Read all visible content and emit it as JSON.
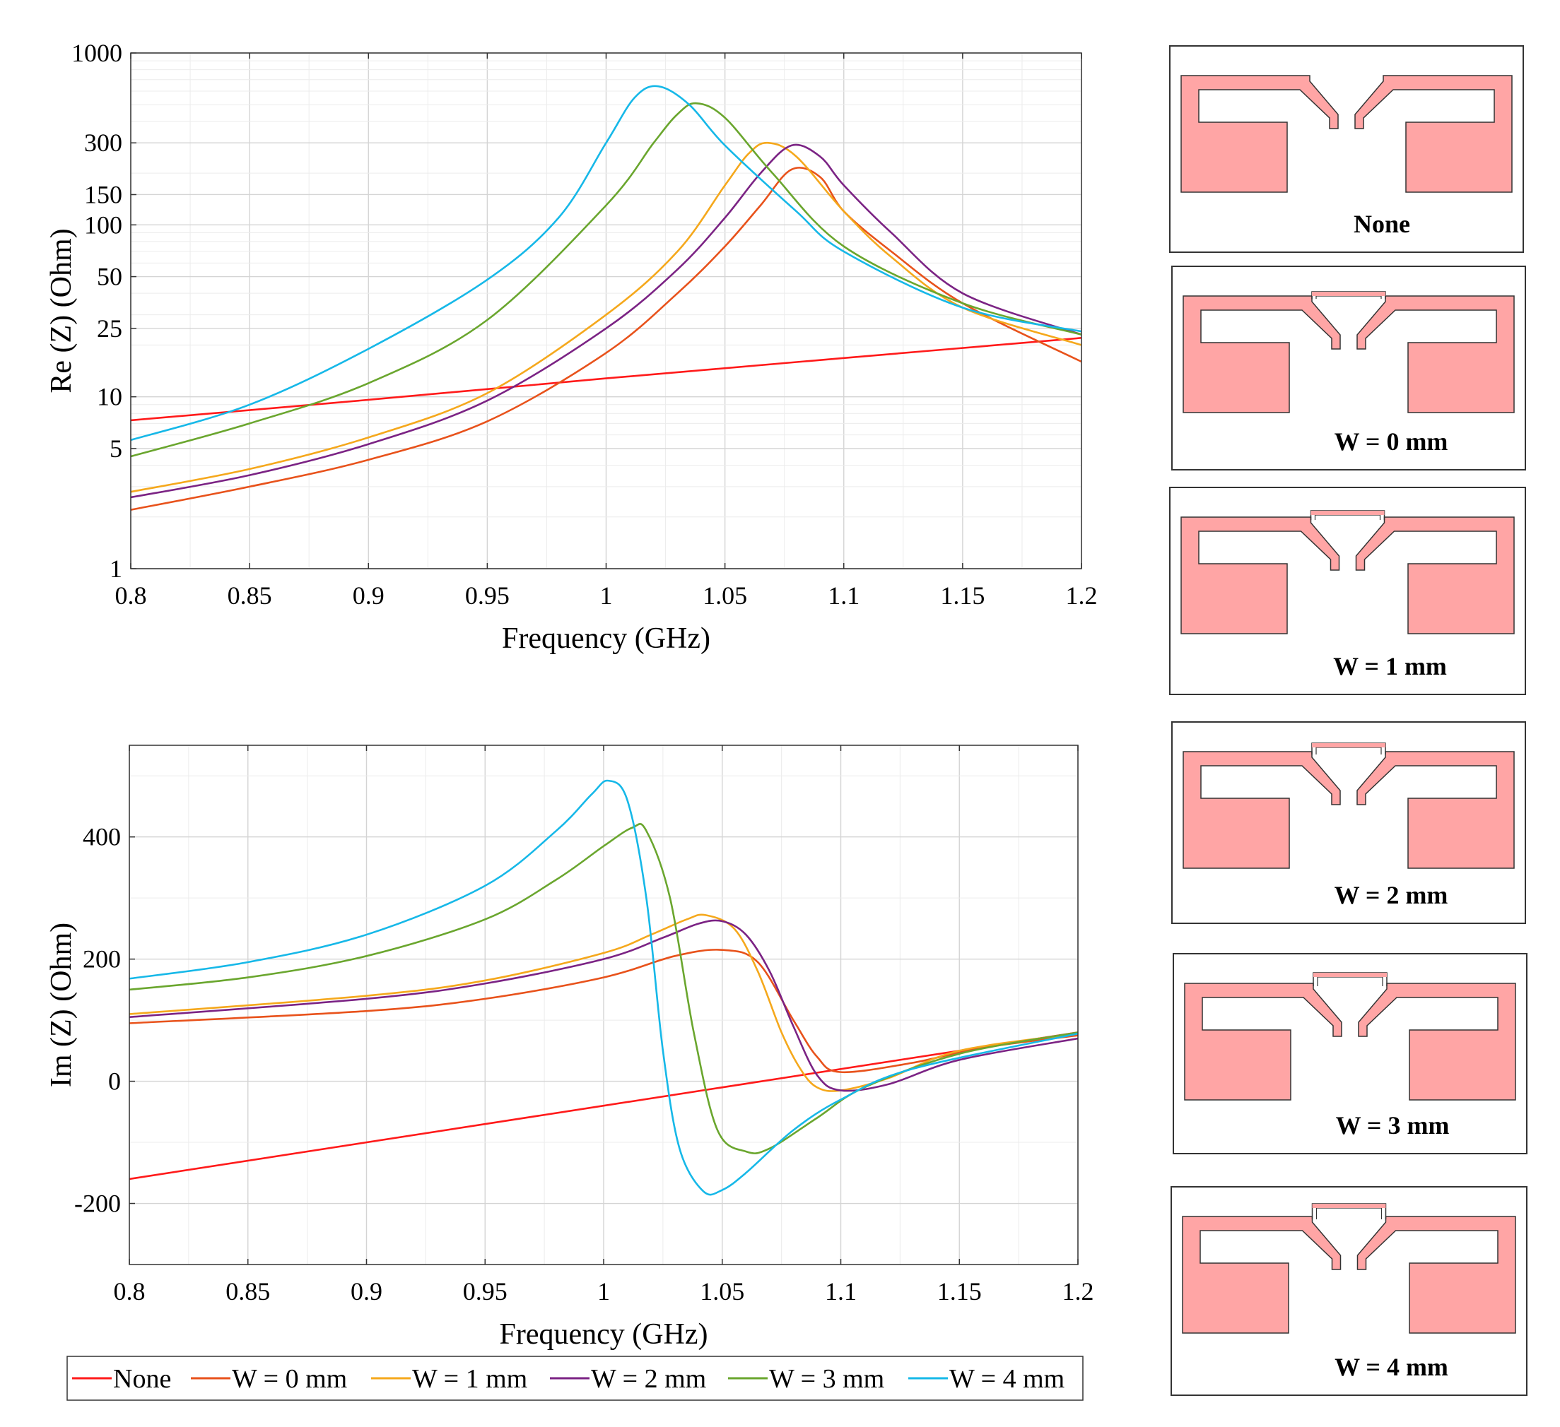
{
  "chart_data": [
    {
      "id": "re",
      "type": "line",
      "title": "",
      "xlabel": "Frequency (GHz)",
      "ylabel": "Re (Z) (Ohm)",
      "yscale": "log",
      "xlim": [
        0.8,
        1.2
      ],
      "ylim": [
        1,
        1000
      ],
      "xticks": [
        0.8,
        0.85,
        0.9,
        0.95,
        1,
        1.05,
        1.1,
        1.15,
        1.2
      ],
      "xticklabels": [
        "0.8",
        "0.85",
        "0.9",
        "0.95",
        "1",
        "1.05",
        "1.1",
        "1.15",
        "1.2"
      ],
      "yticks": [
        1,
        5,
        10,
        25,
        50,
        100,
        150,
        300,
        1000
      ],
      "yticklabels": [
        "1",
        "5",
        "10",
        "25",
        "50",
        "100",
        "150",
        "300",
        "1000"
      ],
      "grid": true,
      "series": [
        {
          "name": "None",
          "color": "#ff1a1a",
          "x": [
            0.8,
            0.9,
            1.0,
            1.1,
            1.2
          ],
          "y": [
            7.3,
            9.6,
            12.8,
            16.8,
            22
          ]
        },
        {
          "name": "W = 0 mm",
          "color": "#e8521b",
          "x": [
            0.8,
            0.85,
            0.9,
            0.95,
            1.0,
            1.03,
            1.05,
            1.065,
            1.078,
            1.09,
            1.1,
            1.12,
            1.15,
            1.2
          ],
          "y": [
            2.2,
            3.0,
            4.3,
            7.2,
            18,
            40,
            75,
            130,
            210,
            190,
            120,
            70,
            35,
            16
          ]
        },
        {
          "name": "W = 1 mm",
          "color": "#f5a81c",
          "x": [
            0.8,
            0.85,
            0.9,
            0.95,
            1.0,
            1.03,
            1.05,
            1.06,
            1.068,
            1.08,
            1.1,
            1.12,
            1.15,
            1.2
          ],
          "y": [
            2.8,
            3.8,
            5.8,
            10.5,
            30,
            70,
            170,
            260,
            300,
            250,
            120,
            65,
            33,
            20
          ]
        },
        {
          "name": "W = 2 mm",
          "color": "#7b2384",
          "x": [
            0.8,
            0.85,
            0.9,
            0.95,
            1.0,
            1.03,
            1.05,
            1.065,
            1.078,
            1.09,
            1.1,
            1.12,
            1.15,
            1.2
          ],
          "y": [
            2.6,
            3.5,
            5.3,
            9.5,
            25,
            55,
            110,
            200,
            290,
            250,
            170,
            90,
            40,
            23
          ]
        },
        {
          "name": "W = 3 mm",
          "color": "#6aa62e",
          "x": [
            0.8,
            0.85,
            0.9,
            0.95,
            1.0,
            1.02,
            1.03,
            1.038,
            1.05,
            1.07,
            1.1,
            1.15,
            1.2
          ],
          "y": [
            4.5,
            7,
            12,
            28,
            130,
            300,
            440,
            510,
            420,
            200,
            75,
            35,
            23
          ]
        },
        {
          "name": "W = 4 mm",
          "color": "#16b8e8",
          "x": [
            0.8,
            0.85,
            0.9,
            0.95,
            0.98,
            1.0,
            1.012,
            1.022,
            1.035,
            1.05,
            1.08,
            1.1,
            1.15,
            1.2
          ],
          "y": [
            5.6,
            9,
            19,
            48,
            110,
            300,
            550,
            640,
            500,
            290,
            120,
            70,
            33,
            24
          ]
        }
      ]
    },
    {
      "id": "im",
      "type": "line",
      "title": "",
      "xlabel": "Frequency (GHz)",
      "ylabel": "Im (Z) (Ohm)",
      "yscale": "linear",
      "xlim": [
        0.8,
        1.2
      ],
      "ylim": [
        -300,
        550
      ],
      "xticks": [
        0.8,
        0.85,
        0.9,
        0.95,
        1,
        1.05,
        1.1,
        1.15,
        1.2
      ],
      "xticklabels": [
        "0.8",
        "0.85",
        "0.9",
        "0.95",
        "1",
        "1.05",
        "1.1",
        "1.15",
        "1.2"
      ],
      "yticks": [
        -200,
        0,
        200,
        400
      ],
      "yticklabels": [
        "-200",
        "0",
        "200",
        "400"
      ],
      "grid": true,
      "series": [
        {
          "name": "None",
          "color": "#ff1a1a",
          "x": [
            0.8,
            1.2
          ],
          "y": [
            -160,
            80
          ]
        },
        {
          "name": "W = 0 mm",
          "color": "#e8521b",
          "x": [
            0.8,
            0.9,
            0.95,
            1.0,
            1.03,
            1.05,
            1.065,
            1.08,
            1.09,
            1.1,
            1.13,
            1.16,
            1.2
          ],
          "y": [
            95,
            115,
            135,
            170,
            205,
            215,
            195,
            100,
            40,
            15,
            30,
            55,
            75
          ]
        },
        {
          "name": "W = 1 mm",
          "color": "#f5a81c",
          "x": [
            0.8,
            0.9,
            0.95,
            1.0,
            1.02,
            1.035,
            1.043,
            1.055,
            1.065,
            1.075,
            1.083,
            1.09,
            1.1,
            1.12,
            1.15,
            1.2
          ],
          "y": [
            110,
            140,
            165,
            210,
            240,
            265,
            272,
            250,
            180,
            80,
            20,
            -10,
            -15,
            5,
            50,
            78
          ]
        },
        {
          "name": "W = 2 mm",
          "color": "#7b2384",
          "x": [
            0.8,
            0.9,
            0.95,
            1.0,
            1.025,
            1.04,
            1.05,
            1.06,
            1.07,
            1.08,
            1.09,
            1.1,
            1.12,
            1.15,
            1.2
          ],
          "y": [
            105,
            135,
            160,
            200,
            235,
            258,
            262,
            240,
            180,
            90,
            10,
            -15,
            -5,
            35,
            70
          ]
        },
        {
          "name": "W = 3 mm",
          "color": "#6aa62e",
          "x": [
            0.8,
            0.85,
            0.9,
            0.95,
            0.98,
            1.0,
            1.012,
            1.018,
            1.028,
            1.038,
            1.048,
            1.06,
            1.07,
            1.09,
            1.11,
            1.15,
            1.2
          ],
          "y": [
            150,
            170,
            205,
            265,
            330,
            385,
            415,
            410,
            300,
            80,
            -80,
            -115,
            -110,
            -60,
            -10,
            45,
            80
          ]
        },
        {
          "name": "W = 4 mm",
          "color": "#16b8e8",
          "x": [
            0.8,
            0.85,
            0.9,
            0.95,
            0.98,
            0.995,
            1.002,
            1.01,
            1.018,
            1.025,
            1.032,
            1.042,
            1.05,
            1.06,
            1.08,
            1.1,
            1.13,
            1.2
          ],
          "y": [
            168,
            195,
            240,
            320,
            410,
            470,
            492,
            460,
            300,
            50,
            -110,
            -180,
            -178,
            -150,
            -80,
            -30,
            20,
            78
          ]
        }
      ]
    }
  ],
  "legend": {
    "placement": "bottom",
    "items": [
      {
        "label": "None",
        "color": "#ff1a1a"
      },
      {
        "label": "W = 0 mm",
        "color": "#e8521b"
      },
      {
        "label": "W = 1 mm",
        "color": "#f5a81c"
      },
      {
        "label": "W = 2 mm",
        "color": "#7b2384"
      },
      {
        "label": "W = 3 mm",
        "color": "#6aa62e"
      },
      {
        "label": "W = 4 mm",
        "color": "#16b8e8"
      }
    ]
  },
  "antenna_panels": {
    "fill_color": "#ffa5a5",
    "items": [
      {
        "label": "None",
        "bridge": "none"
      },
      {
        "label": "W = 0 mm",
        "bridge": "0"
      },
      {
        "label": "W = 1 mm",
        "bridge": "1"
      },
      {
        "label": "W = 2 mm",
        "bridge": "2"
      },
      {
        "label": "W = 3 mm",
        "bridge": "3"
      },
      {
        "label": "W = 4 mm",
        "bridge": "4"
      }
    ]
  }
}
